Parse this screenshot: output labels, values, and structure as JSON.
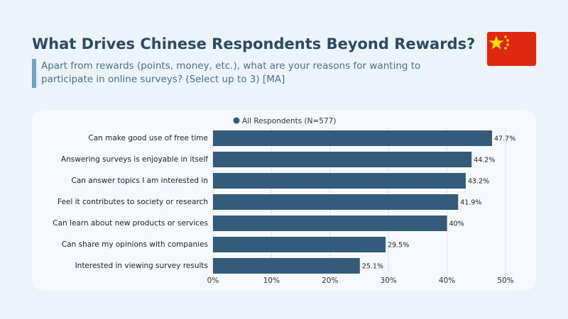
{
  "chart_data": {
    "type": "bar",
    "orientation": "horizontal",
    "title": "What Drives Chinese Respondents Beyond Rewards?",
    "subtitle": "Apart from rewards (points, money, etc.), what are your reasons for wanting to participate in online surveys? (Select up to 3) [MA]",
    "categories": [
      "Can make good use of free time",
      "Answering surveys is enjoyable in itself",
      "Can answer topics I am interested in",
      "Feel it contributes to society or research",
      "Can learn about new products or services",
      "Can share my opinions with companies",
      "Interested in viewing survey results"
    ],
    "series": [
      {
        "name": "All  Respondents (N=577)",
        "color": "#345b7a",
        "values": [
          47.7,
          44.2,
          43.2,
          41.9,
          40,
          29.5,
          25.1
        ],
        "value_labels": [
          "47.7%",
          "44.2%",
          "43.2%",
          "41.9%",
          "40%",
          "29.5%",
          "25.1%"
        ]
      }
    ],
    "xlim": [
      0,
      50
    ],
    "xticks": [
      {
        "value": 0,
        "label": "0%"
      },
      {
        "value": 10,
        "label": "10%"
      },
      {
        "value": 20,
        "label": "20%"
      },
      {
        "value": 30,
        "label": "30%"
      },
      {
        "value": 40,
        "label": "40%"
      },
      {
        "value": 50,
        "label": "50%"
      }
    ],
    "grid": true
  }
}
